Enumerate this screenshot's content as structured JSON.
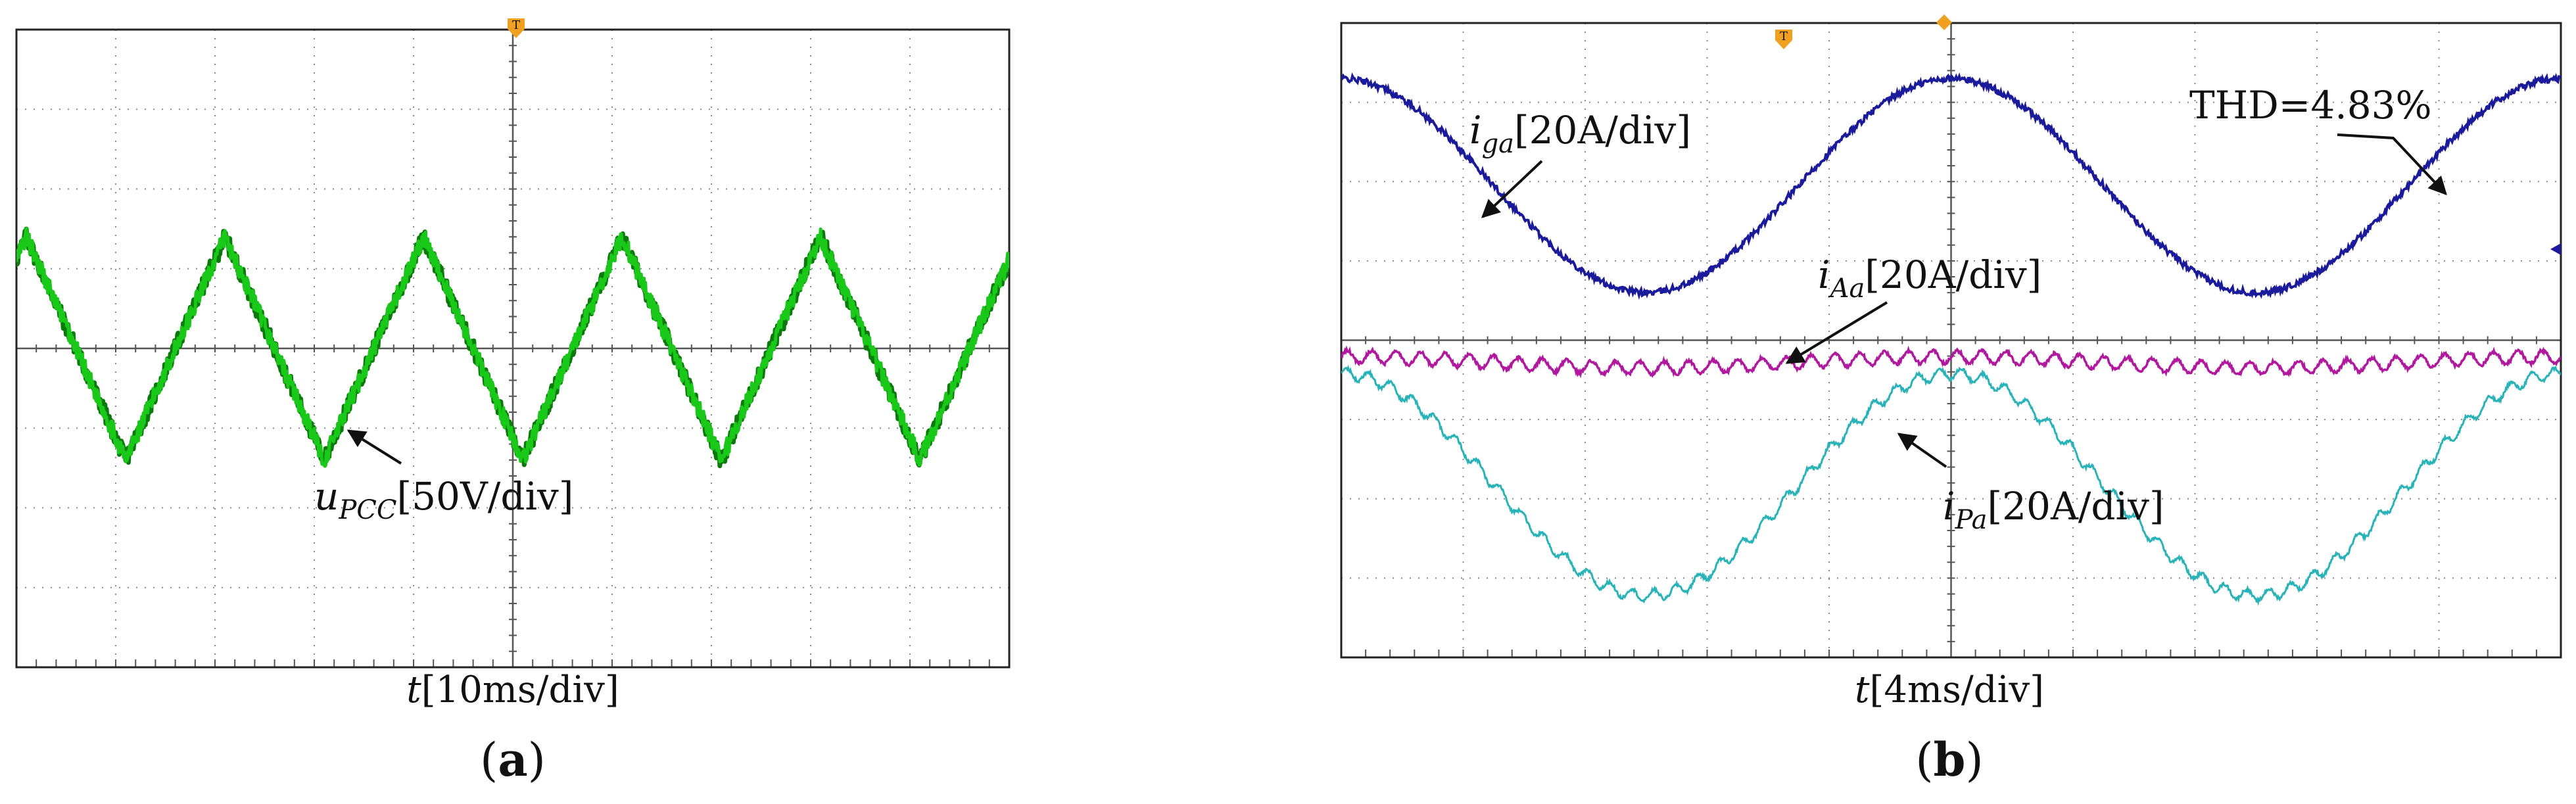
{
  "colors": {
    "grid": "#888888",
    "frame": "#222222",
    "u_pcc": "#19c819",
    "u_pcc_dark": "#0a7a0a",
    "i_ga": "#1a1a9a",
    "i_Aa": "#b0189e",
    "i_Pa": "#27b3b8",
    "trigger": "#f0a020",
    "arrow": "#111111"
  },
  "chart_data": [
    {
      "type": "line",
      "panel": "a",
      "panel_label": "a",
      "xlabel_var": "t",
      "xlabel_unit": "[10ms/div]",
      "grid": true,
      "divisions": {
        "x": 10,
        "y": 8
      },
      "series": [
        {
          "id": "u_pcc",
          "label_var": "u",
          "label_sub": "PCC",
          "label_unit": "[50V/div]",
          "color_key": "u_pcc",
          "waveform": "triangle",
          "period_div": 2.0,
          "amplitude_div": 1.4,
          "offset_div": 0,
          "phase_div": -0.9,
          "noise_div": 0.12
        }
      ]
    },
    {
      "type": "line",
      "panel": "b",
      "panel_label": "b",
      "xlabel_var": "t",
      "xlabel_unit": "[4ms/div]",
      "grid": true,
      "divisions": {
        "x": 10,
        "y": 8
      },
      "annotation": "THD=4.83%",
      "series": [
        {
          "id": "i_ga",
          "label_var": "i",
          "label_sub": "ga",
          "label_unit": "[20A/div]",
          "color_key": "i_ga",
          "waveform": "sine",
          "period_div": 5.0,
          "amplitude_div": 1.35,
          "offset_div": 1.95,
          "phase_div": 5.0,
          "noise_div": 0.04
        },
        {
          "id": "i_Aa",
          "label_var": "i",
          "label_sub": "Aa",
          "label_unit": "[20A/div]",
          "color_key": "i_Aa",
          "waveform": "ripple",
          "period_div": 5.0,
          "amplitude_div": 0.07,
          "offset_div": -0.28,
          "phase_div": 0,
          "ripple_period_div": 0.2,
          "ripple_amp_div": 0.08,
          "noise_div": 0.02
        },
        {
          "id": "i_Pa",
          "label_var": "i",
          "label_sub": "Pa",
          "label_unit": "[20A/div]",
          "color_key": "i_Pa",
          "waveform": "sine",
          "period_div": 5.0,
          "amplitude_div": 1.4,
          "offset_div": -1.82,
          "phase_div": 5.0,
          "ripple_period_div": 0.18,
          "ripple_amp_div": 0.07,
          "noise_div": 0.02
        }
      ]
    }
  ]
}
